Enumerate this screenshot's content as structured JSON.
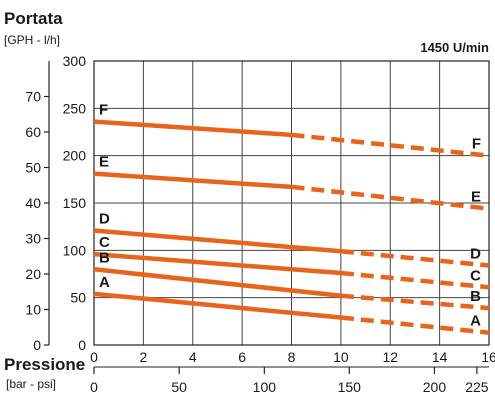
{
  "chart_data": {
    "type": "line",
    "title": "Portata",
    "y_unit_label": "[GPH - l/h]",
    "speed_label": "1450 U/min",
    "xlabel": "Pressione",
    "x_unit_label": "[bar - psi]",
    "xlim": [
      0,
      16
    ],
    "ylim_lh": [
      0,
      300
    ],
    "ylim_gph": [
      0,
      80
    ],
    "x_bar_ticks": [
      "0",
      "2",
      "4",
      "6",
      "8",
      "10",
      "12",
      "14",
      "16"
    ],
    "x_psi_ticks": [
      {
        "bar": 0,
        "label": "0"
      },
      {
        "bar": 3.45,
        "label": "50"
      },
      {
        "bar": 6.9,
        "label": "100"
      },
      {
        "bar": 10.34,
        "label": "150"
      },
      {
        "bar": 13.79,
        "label": "200"
      },
      {
        "bar": 15.51,
        "label": "225"
      }
    ],
    "y_lh_ticks": [
      "0",
      "50",
      "100",
      "150",
      "200",
      "250",
      "300"
    ],
    "y_gph_ticks": [
      "0",
      "10",
      "20",
      "30",
      "40",
      "50",
      "60",
      "70"
    ],
    "grid": true,
    "line_color": "#e8641b",
    "series": [
      {
        "name": "F",
        "solid": [
          [
            0,
            236
          ],
          [
            8,
            222
          ]
        ],
        "dashed": [
          [
            8,
            222
          ],
          [
            16,
            200
          ]
        ]
      },
      {
        "name": "E",
        "solid": [
          [
            0,
            181
          ],
          [
            8,
            167
          ]
        ],
        "dashed": [
          [
            8,
            167
          ],
          [
            16,
            144
          ]
        ]
      },
      {
        "name": "D",
        "solid": [
          [
            0,
            121
          ],
          [
            10,
            99
          ]
        ],
        "dashed": [
          [
            10,
            99
          ],
          [
            16,
            84
          ]
        ]
      },
      {
        "name": "C",
        "solid": [
          [
            0,
            96
          ],
          [
            10,
            76
          ]
        ],
        "dashed": [
          [
            10,
            76
          ],
          [
            16,
            61
          ]
        ]
      },
      {
        "name": "B",
        "solid": [
          [
            0,
            80
          ],
          [
            10,
            52
          ]
        ],
        "dashed": [
          [
            10,
            52
          ],
          [
            16,
            39
          ]
        ]
      },
      {
        "name": "A",
        "solid": [
          [
            0,
            54
          ],
          [
            10,
            29
          ]
        ],
        "dashed": [
          [
            10,
            29
          ],
          [
            16,
            13
          ]
        ]
      }
    ]
  }
}
